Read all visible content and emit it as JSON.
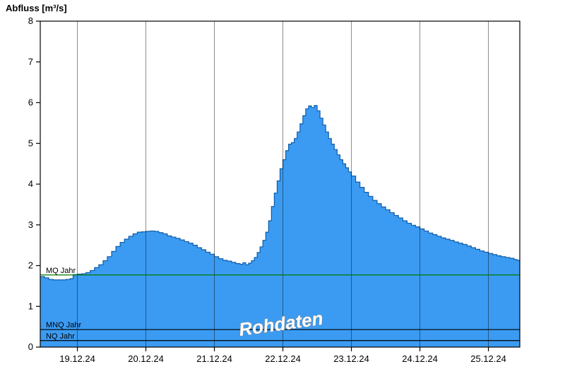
{
  "header": {
    "title": "Abfluss [m³/s]"
  },
  "watermark": {
    "text": "Rohdaten"
  },
  "chart_data": {
    "type": "area",
    "title": "Abfluss [m³/s]",
    "ylabel": "Abfluss [m³/s]",
    "xlabel": "",
    "ylim": [
      0,
      8
    ],
    "yticks": [
      0,
      1,
      2,
      3,
      4,
      5,
      6,
      7,
      8
    ],
    "x_range_hours": [
      0,
      168
    ],
    "x_tick_hours": [
      13,
      37,
      61,
      85,
      109,
      133,
      157
    ],
    "x_tick_labels": [
      "19.12.24",
      "20.12.24",
      "21.12.24",
      "22.12.24",
      "23.12.24",
      "24.12.24",
      "25.12.24"
    ],
    "grid": "vertical-only",
    "legend": "none",
    "colors": {
      "area_fill": "#3B9BF2",
      "area_line": "#0F5CA8",
      "grid_line": "#000000",
      "mq_line": "#007A00",
      "ref_line": "#000000",
      "watermark_fill": "#FFFFFF",
      "watermark_outline": "#8A8A8A"
    },
    "reference_lines": [
      {
        "label": "MQ Jahr",
        "value": 1.77,
        "color_key": "mq_line"
      },
      {
        "label": "MNQ Jahr",
        "value": 0.43,
        "color_key": "ref_line"
      },
      {
        "label": "NQ Jahr",
        "value": 0.16,
        "color_key": "ref_line"
      }
    ],
    "series": [
      {
        "name": "Rohdaten",
        "points": [
          [
            0,
            1.73
          ],
          [
            1.5,
            1.7
          ],
          [
            3,
            1.66
          ],
          [
            4.5,
            1.65
          ],
          [
            7,
            1.65
          ],
          [
            9,
            1.66
          ],
          [
            10.5,
            1.68
          ],
          [
            11.5,
            1.78
          ],
          [
            13,
            1.79
          ],
          [
            14.5,
            1.8
          ],
          [
            16,
            1.83
          ],
          [
            17.5,
            1.88
          ],
          [
            19,
            1.95
          ],
          [
            20.5,
            2.02
          ],
          [
            22,
            2.12
          ],
          [
            23.5,
            2.22
          ],
          [
            25,
            2.35
          ],
          [
            26.5,
            2.47
          ],
          [
            28,
            2.57
          ],
          [
            29.5,
            2.65
          ],
          [
            31,
            2.72
          ],
          [
            32.5,
            2.78
          ],
          [
            34,
            2.82
          ],
          [
            35.5,
            2.83
          ],
          [
            37,
            2.84
          ],
          [
            38.5,
            2.85
          ],
          [
            40,
            2.84
          ],
          [
            41.5,
            2.81
          ],
          [
            43,
            2.78
          ],
          [
            44.5,
            2.73
          ],
          [
            46,
            2.7
          ],
          [
            47.5,
            2.67
          ],
          [
            49,
            2.63
          ],
          [
            50.5,
            2.59
          ],
          [
            52,
            2.55
          ],
          [
            53.5,
            2.5
          ],
          [
            55,
            2.44
          ],
          [
            56.5,
            2.39
          ],
          [
            58,
            2.33
          ],
          [
            59.5,
            2.28
          ],
          [
            61,
            2.22
          ],
          [
            62.5,
            2.17
          ],
          [
            64,
            2.13
          ],
          [
            65.5,
            2.11
          ],
          [
            67,
            2.08
          ],
          [
            68.5,
            2.05
          ],
          [
            70,
            2.03
          ],
          [
            71,
            2.07
          ],
          [
            72,
            2.02
          ],
          [
            73,
            2.06
          ],
          [
            74,
            2.12
          ],
          [
            75,
            2.2
          ],
          [
            76,
            2.32
          ],
          [
            77,
            2.46
          ],
          [
            78,
            2.62
          ],
          [
            79,
            2.82
          ],
          [
            80,
            3.1
          ],
          [
            81,
            3.45
          ],
          [
            82,
            3.78
          ],
          [
            83,
            4.08
          ],
          [
            84,
            4.38
          ],
          [
            85,
            4.6
          ],
          [
            86,
            4.82
          ],
          [
            87,
            4.98
          ],
          [
            88,
            5.02
          ],
          [
            89,
            5.12
          ],
          [
            90,
            5.28
          ],
          [
            91,
            5.48
          ],
          [
            92,
            5.68
          ],
          [
            93,
            5.85
          ],
          [
            94,
            5.92
          ],
          [
            95,
            5.88
          ],
          [
            96,
            5.93
          ],
          [
            97,
            5.8
          ],
          [
            98,
            5.62
          ],
          [
            99,
            5.45
          ],
          [
            100,
            5.28
          ],
          [
            101,
            5.12
          ],
          [
            102,
            4.98
          ],
          [
            103,
            4.85
          ],
          [
            104,
            4.72
          ],
          [
            105,
            4.6
          ],
          [
            106,
            4.5
          ],
          [
            107,
            4.4
          ],
          [
            108,
            4.3
          ],
          [
            109,
            4.2
          ],
          [
            110.5,
            4.05
          ],
          [
            112,
            3.92
          ],
          [
            113.5,
            3.8
          ],
          [
            115,
            3.7
          ],
          [
            116.5,
            3.6
          ],
          [
            118,
            3.52
          ],
          [
            119.5,
            3.44
          ],
          [
            121,
            3.37
          ],
          [
            122.5,
            3.3
          ],
          [
            124,
            3.23
          ],
          [
            125.5,
            3.17
          ],
          [
            127,
            3.1
          ],
          [
            128.5,
            3.04
          ],
          [
            130,
            2.99
          ],
          [
            131.5,
            2.95
          ],
          [
            133,
            2.9
          ],
          [
            134.5,
            2.85
          ],
          [
            136,
            2.8
          ],
          [
            137.5,
            2.76
          ],
          [
            139,
            2.72
          ],
          [
            140.5,
            2.68
          ],
          [
            142,
            2.65
          ],
          [
            143.5,
            2.62
          ],
          [
            145,
            2.58
          ],
          [
            146.5,
            2.55
          ],
          [
            148,
            2.52
          ],
          [
            149.5,
            2.48
          ],
          [
            151,
            2.44
          ],
          [
            152.5,
            2.4
          ],
          [
            154,
            2.36
          ],
          [
            155.5,
            2.33
          ],
          [
            157,
            2.3
          ],
          [
            158.5,
            2.27
          ],
          [
            160,
            2.24
          ],
          [
            161.5,
            2.22
          ],
          [
            163,
            2.2
          ],
          [
            164.5,
            2.18
          ],
          [
            166,
            2.15
          ],
          [
            167,
            2.13
          ],
          [
            168,
            2.12
          ]
        ]
      }
    ]
  }
}
